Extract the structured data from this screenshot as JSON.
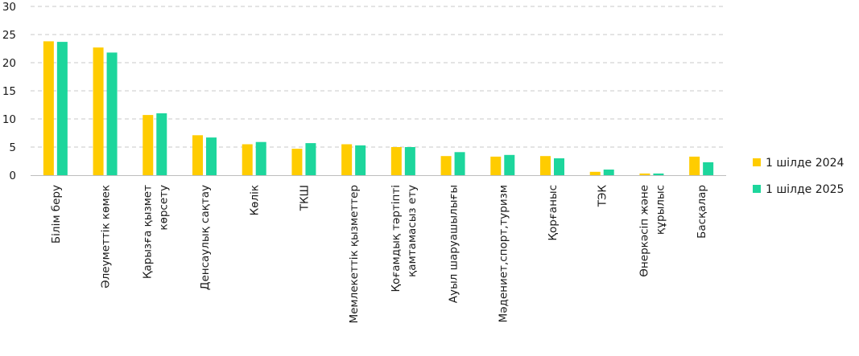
{
  "chart_data": {
    "type": "bar",
    "categories": [
      [
        "Білім беру"
      ],
      [
        "Әлеуметтік көмек"
      ],
      [
        "Қарызға қызмет",
        "көрсету"
      ],
      [
        "Денсаулық сақтау"
      ],
      [
        "Көлік"
      ],
      [
        "ТКШ"
      ],
      [
        "Мемлекеттік қызметтер"
      ],
      [
        "Қоғамдық тәртіпті",
        "қамтамасыз ету"
      ],
      [
        "Ауыл шаруашылығы"
      ],
      [
        "Мәдениет,спорт,туризм"
      ],
      [
        "Қорғаныс"
      ],
      [
        "ТЭК"
      ],
      [
        "Өнеркәсіп және",
        "құрылыс"
      ],
      [
        "Басқалар"
      ]
    ],
    "series": [
      {
        "name": "1 шілде 2024",
        "color": "#FFCC00",
        "values": [
          23.8,
          22.7,
          10.7,
          7.1,
          5.5,
          4.7,
          5.5,
          5.0,
          3.4,
          3.3,
          3.4,
          0.6,
          0.3,
          3.3
        ]
      },
      {
        "name": "1 шілде 2025",
        "color": "#1DD69C",
        "values": [
          23.7,
          21.8,
          11.0,
          6.7,
          5.9,
          5.7,
          5.3,
          5.0,
          4.1,
          3.6,
          3.0,
          1.0,
          0.3,
          2.3
        ]
      }
    ],
    "yticks": [
      0,
      5,
      10,
      15,
      20,
      25,
      30
    ],
    "ylim": [
      0,
      30
    ],
    "grid": true,
    "legend": "right"
  }
}
